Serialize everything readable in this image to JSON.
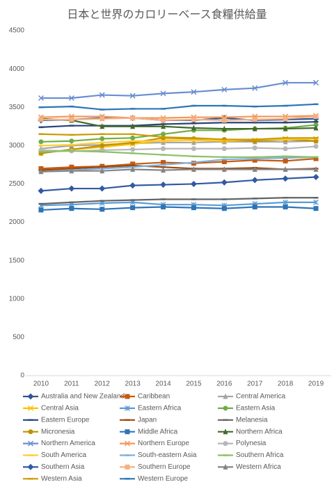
{
  "chart_data": {
    "type": "line",
    "title": "日本と世界のカロリーベース食糧供給量",
    "categories": [
      2010,
      2011,
      2012,
      2013,
      2014,
      2015,
      2016,
      2017,
      2018,
      2019
    ],
    "ylim": [
      0,
      4500
    ],
    "yticks": [
      0,
      500,
      1000,
      1500,
      2000,
      2500,
      3000,
      3500,
      4000,
      4500
    ],
    "grid": false,
    "legend": "bottom",
    "series": [
      {
        "name": "Australia and New Zealand",
        "color": "#2f5597",
        "marker": "diamond",
        "values": [
          3330,
          3340,
          3360,
          3360,
          3330,
          3330,
          3360,
          3330,
          3340,
          3350
        ]
      },
      {
        "name": "Caribbean",
        "color": "#c55a11",
        "marker": "square",
        "values": [
          2700,
          2720,
          2730,
          2760,
          2780,
          2770,
          2790,
          2810,
          2800,
          2830
        ]
      },
      {
        "name": "Central America",
        "color": "#a5a5a5",
        "marker": "triangle",
        "values": [
          2960,
          3000,
          3010,
          3030,
          3040,
          3040,
          3050,
          3050,
          3050,
          3060
        ]
      },
      {
        "name": "Central Asia",
        "color": "#ffc000",
        "marker": "x",
        "values": [
          2900,
          2950,
          2980,
          3020,
          3070,
          3070,
          3060,
          3070,
          3090,
          3090
        ]
      },
      {
        "name": "Eastern Africa",
        "color": "#5b9bd5",
        "marker": "star",
        "values": [
          2220,
          2230,
          2250,
          2260,
          2230,
          2230,
          2220,
          2240,
          2260,
          2260
        ]
      },
      {
        "name": "Eastern Asia",
        "color": "#70ad47",
        "marker": "circle",
        "values": [
          3050,
          3060,
          3090,
          3100,
          3150,
          3200,
          3200,
          3220,
          3230,
          3270
        ]
      },
      {
        "name": "Eastern Europe",
        "color": "#264478",
        "marker": "dash",
        "values": [
          3240,
          3260,
          3260,
          3260,
          3280,
          3290,
          3300,
          3300,
          3300,
          3310
        ]
      },
      {
        "name": "Japan",
        "color": "#9e480e",
        "marker": "dash",
        "values": [
          2680,
          2700,
          2720,
          2740,
          2720,
          2700,
          2700,
          2710,
          2690,
          2700
        ]
      },
      {
        "name": "Melanesia",
        "color": "#636363",
        "marker": "dash",
        "values": [
          2240,
          2260,
          2280,
          2290,
          2300,
          2300,
          2300,
          2310,
          2320,
          2320
        ]
      },
      {
        "name": "Micronesia",
        "color": "#bf9000",
        "marker": "circle",
        "values": [
          2900,
          2950,
          3000,
          3040,
          3100,
          3090,
          3080,
          3060,
          3080,
          3060
        ]
      },
      {
        "name": "Middle Africa",
        "color": "#2e75b6",
        "marker": "square",
        "values": [
          2160,
          2180,
          2170,
          2190,
          2200,
          2190,
          2180,
          2200,
          2200,
          2180
        ]
      },
      {
        "name": "Northern Africa",
        "color": "#43682b",
        "marker": "triangle",
        "values": [
          3350,
          3330,
          3250,
          3250,
          3250,
          3230,
          3220,
          3220,
          3220,
          3230
        ]
      },
      {
        "name": "Northern America",
        "color": "#698ed0",
        "marker": "x",
        "values": [
          3620,
          3620,
          3660,
          3650,
          3680,
          3700,
          3730,
          3750,
          3820,
          3820
        ]
      },
      {
        "name": "Northern Europe",
        "color": "#f1975a",
        "marker": "x",
        "values": [
          3370,
          3380,
          3380,
          3360,
          3360,
          3370,
          3370,
          3380,
          3380,
          3390
        ]
      },
      {
        "name": "Polynesia",
        "color": "#b7b7b7",
        "marker": "circle",
        "values": [
          2940,
          2930,
          2940,
          2950,
          2960,
          2960,
          2960,
          2970,
          2960,
          2990
        ]
      },
      {
        "name": "South America",
        "color": "#ffcd33",
        "marker": "dash",
        "values": [
          3000,
          3010,
          3040,
          3060,
          3060,
          3070,
          3070,
          3080,
          3080,
          3090
        ]
      },
      {
        "name": "South-eastern Asia",
        "color": "#7cafdd",
        "marker": "dash",
        "values": [
          2660,
          2680,
          2700,
          2720,
          2750,
          2780,
          2820,
          2830,
          2840,
          2850
        ]
      },
      {
        "name": "Southern Africa",
        "color": "#8cc168",
        "marker": "dash",
        "values": [
          2920,
          2930,
          2920,
          2900,
          2880,
          2860,
          2850,
          2850,
          2860,
          2850
        ]
      },
      {
        "name": "Southern Asia",
        "color": "#335aa1",
        "marker": "diamond",
        "values": [
          2410,
          2440,
          2440,
          2480,
          2490,
          2500,
          2520,
          2550,
          2570,
          2590
        ]
      },
      {
        "name": "Southern Europe",
        "color": "#f4b183",
        "marker": "square",
        "values": [
          3340,
          3340,
          3350,
          3360,
          3330,
          3340,
          3330,
          3340,
          3350,
          3380
        ]
      },
      {
        "name": "Western Africa",
        "color": "#848484",
        "marker": "triangle",
        "values": [
          2660,
          2670,
          2670,
          2690,
          2680,
          2690,
          2690,
          2690,
          2690,
          2690
        ]
      },
      {
        "name": "Western Asia",
        "color": "#cc9a00",
        "marker": "dash",
        "values": [
          3150,
          3140,
          3150,
          3150,
          3110,
          3100,
          3080,
          3080,
          3100,
          3100
        ]
      },
      {
        "name": "Western Europe",
        "color": "#2e75b6",
        "marker": "dash",
        "values": [
          3500,
          3510,
          3470,
          3480,
          3480,
          3520,
          3520,
          3510,
          3520,
          3540
        ]
      }
    ]
  }
}
